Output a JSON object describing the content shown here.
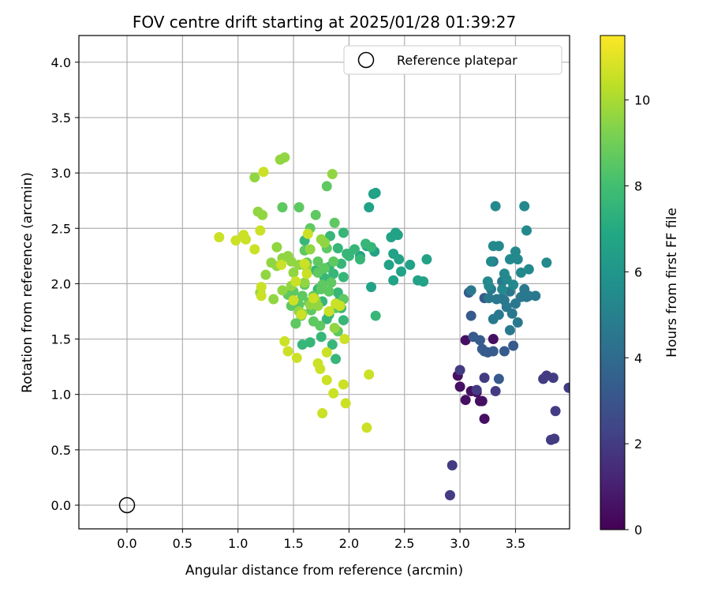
{
  "chart_data": {
    "type": "scatter",
    "title": "FOV centre drift starting at 2025/01/28 01:39:27",
    "xlabel": "Angular distance from reference (arcmin)",
    "ylabel": "Rotation from reference (arcmin)",
    "xlim": [
      -0.43,
      3.99
    ],
    "ylim": [
      -0.21,
      4.22
    ],
    "xticks": [
      "0.0",
      "0.5",
      "1.0",
      "1.5",
      "2.0",
      "2.5",
      "3.0",
      "3.5"
    ],
    "yticks": [
      "0.0",
      "0.5",
      "1.0",
      "1.5",
      "2.0",
      "2.5",
      "3.0",
      "3.5",
      "4.0"
    ],
    "grid": true,
    "legend": {
      "label": "Reference platepar",
      "placement": "top-right",
      "marker": "open-circle"
    },
    "reference_point": {
      "x": 0.0,
      "y": 0.0
    },
    "colorbar": {
      "label": "Hours from first FF file",
      "colormap": "viridis",
      "range": [
        0,
        11.5
      ],
      "ticks": [
        "0",
        "2",
        "4",
        "6",
        "8",
        "10"
      ]
    },
    "series": [
      {
        "color_value": 0.5,
        "points": [
          [
            3.05,
            1.49
          ],
          [
            3.2,
            0.94
          ],
          [
            3.22,
            0.78
          ],
          [
            3.3,
            1.5
          ],
          [
            3.0,
            1.07
          ],
          [
            3.05,
            0.95
          ],
          [
            3.1,
            1.03
          ],
          [
            3.15,
            1.02
          ],
          [
            3.18,
            0.94
          ],
          [
            2.98,
            1.17
          ]
        ]
      },
      {
        "color_value": 2.0,
        "points": [
          [
            2.93,
            0.36
          ],
          [
            2.91,
            0.09
          ],
          [
            3.0,
            1.22
          ],
          [
            3.15,
            1.04
          ],
          [
            3.22,
            1.15
          ],
          [
            3.32,
            1.03
          ],
          [
            3.85,
            0.6
          ],
          [
            3.86,
            0.85
          ],
          [
            3.82,
            0.59
          ],
          [
            3.78,
            1.17
          ],
          [
            3.75,
            1.14
          ],
          [
            3.84,
            1.15
          ],
          [
            3.98,
            1.06
          ]
        ]
      },
      {
        "color_value": 3.3,
        "points": [
          [
            3.08,
            1.92
          ],
          [
            3.1,
            1.71
          ],
          [
            3.12,
            1.52
          ],
          [
            3.18,
            1.49
          ],
          [
            3.2,
            1.41
          ],
          [
            3.22,
            1.39
          ],
          [
            3.25,
            1.38
          ],
          [
            3.3,
            1.39
          ],
          [
            3.35,
            1.14
          ],
          [
            3.4,
            1.39
          ],
          [
            3.48,
            1.44
          ],
          [
            3.22,
            1.87
          ]
        ]
      },
      {
        "color_value": 4.6,
        "points": [
          [
            3.28,
            1.95
          ],
          [
            3.26,
            1.87
          ],
          [
            3.3,
            1.68
          ],
          [
            3.35,
            1.72
          ],
          [
            3.38,
            1.87
          ],
          [
            3.4,
            1.85
          ],
          [
            3.42,
            1.79
          ],
          [
            3.45,
            1.93
          ],
          [
            3.47,
            1.73
          ],
          [
            3.5,
            1.82
          ],
          [
            3.52,
            1.65
          ],
          [
            3.55,
            1.88
          ],
          [
            3.58,
            1.95
          ],
          [
            3.6,
            1.88
          ],
          [
            3.62,
            1.89
          ],
          [
            3.68,
            1.89
          ],
          [
            3.33,
            1.86
          ],
          [
            3.45,
            1.58
          ],
          [
            3.3,
            2.2
          ],
          [
            3.38,
            2.02
          ],
          [
            3.1,
            1.94
          ]
        ]
      },
      {
        "color_value": 5.4,
        "points": [
          [
            3.25,
            2.02
          ],
          [
            3.28,
            2.2
          ],
          [
            3.3,
            2.34
          ],
          [
            3.35,
            2.34
          ],
          [
            3.4,
            2.09
          ],
          [
            3.42,
            2.04
          ],
          [
            3.45,
            2.22
          ],
          [
            3.48,
            1.99
          ],
          [
            3.5,
            2.29
          ],
          [
            3.52,
            2.22
          ],
          [
            3.55,
            2.1
          ],
          [
            3.58,
            2.7
          ],
          [
            3.6,
            2.48
          ],
          [
            3.62,
            2.13
          ],
          [
            3.32,
            2.7
          ],
          [
            3.78,
            2.19
          ],
          [
            3.38,
            1.95
          ],
          [
            3.26,
            1.98
          ]
        ]
      },
      {
        "color_value": 6.6,
        "points": [
          [
            2.18,
            2.69
          ],
          [
            2.2,
            1.97
          ],
          [
            2.23,
            2.29
          ],
          [
            2.36,
            2.17
          ],
          [
            2.38,
            2.42
          ],
          [
            2.42,
            2.46
          ],
          [
            2.44,
            2.44
          ],
          [
            2.4,
            2.27
          ],
          [
            2.45,
            2.22
          ],
          [
            2.47,
            2.11
          ],
          [
            2.4,
            2.03
          ],
          [
            2.55,
            2.17
          ],
          [
            2.62,
            2.03
          ],
          [
            2.67,
            2.02
          ],
          [
            2.7,
            2.22
          ],
          [
            2.22,
            2.81
          ],
          [
            2.24,
            2.82
          ],
          [
            2.1,
            2.25
          ],
          [
            2.16,
            2.34
          ]
        ]
      },
      {
        "color_value": 7.6,
        "points": [
          [
            1.95,
            1.67
          ],
          [
            1.92,
            1.86
          ],
          [
            1.9,
            1.92
          ],
          [
            1.95,
            2.06
          ],
          [
            1.93,
            2.18
          ],
          [
            1.98,
            2.27
          ],
          [
            2.0,
            2.25
          ],
          [
            2.05,
            2.31
          ],
          [
            2.1,
            2.22
          ],
          [
            2.15,
            2.36
          ],
          [
            2.2,
            2.33
          ],
          [
            2.24,
            1.71
          ],
          [
            1.88,
            1.32
          ],
          [
            1.8,
            1.68
          ],
          [
            1.75,
            1.52
          ],
          [
            1.85,
            1.45
          ],
          [
            1.82,
            2.15
          ],
          [
            1.83,
            2.43
          ],
          [
            1.95,
            2.46
          ],
          [
            1.78,
            2.05
          ],
          [
            1.9,
            2.32
          ],
          [
            1.72,
            1.95
          ],
          [
            1.65,
            1.47
          ],
          [
            1.6,
            2.39
          ],
          [
            1.7,
            2.12
          ],
          [
            1.86,
            2.09
          ],
          [
            1.76,
            1.84
          ],
          [
            1.82,
            1.72
          ],
          [
            1.93,
            1.78
          ],
          [
            1.58,
            1.45
          ]
        ]
      },
      {
        "color_value": 8.6,
        "points": [
          [
            1.48,
            1.8
          ],
          [
            1.5,
            1.93
          ],
          [
            1.52,
            1.64
          ],
          [
            1.55,
            1.81
          ],
          [
            1.57,
            1.71
          ],
          [
            1.58,
            1.89
          ],
          [
            1.6,
            1.99
          ],
          [
            1.62,
            2.19
          ],
          [
            1.64,
            1.83
          ],
          [
            1.66,
            1.76
          ],
          [
            1.68,
            1.89
          ],
          [
            1.7,
            2.62
          ],
          [
            1.72,
            2.1
          ],
          [
            1.74,
            1.62
          ],
          [
            1.76,
            1.99
          ],
          [
            1.78,
            2.14
          ],
          [
            1.8,
            2.32
          ],
          [
            1.82,
            1.93
          ],
          [
            1.84,
            2.01
          ],
          [
            1.86,
            2.2
          ],
          [
            1.88,
            1.78
          ],
          [
            1.9,
            1.57
          ],
          [
            1.75,
            1.95
          ],
          [
            1.65,
            2.5
          ],
          [
            1.4,
            2.69
          ],
          [
            1.55,
            2.69
          ],
          [
            1.8,
            2.88
          ],
          [
            1.87,
            2.55
          ],
          [
            1.72,
            2.2
          ],
          [
            1.6,
            2.3
          ],
          [
            1.95,
            1.86
          ],
          [
            1.45,
            1.9
          ],
          [
            1.52,
            1.64
          ],
          [
            1.68,
            1.66
          ]
        ]
      },
      {
        "color_value": 9.6,
        "points": [
          [
            1.18,
            2.65
          ],
          [
            1.22,
            2.62
          ],
          [
            1.15,
            2.96
          ],
          [
            1.38,
            3.12
          ],
          [
            1.42,
            3.14
          ],
          [
            1.3,
            2.19
          ],
          [
            1.35,
            2.33
          ],
          [
            1.4,
            2.23
          ],
          [
            1.45,
            2.25
          ],
          [
            1.48,
            2.2
          ],
          [
            1.5,
            2.1
          ],
          [
            1.55,
            2.17
          ],
          [
            1.6,
            2.01
          ],
          [
            1.62,
            2.15
          ],
          [
            1.65,
            2.31
          ],
          [
            1.7,
            1.85
          ],
          [
            1.72,
            1.8
          ],
          [
            1.78,
            2.37
          ],
          [
            1.85,
            2.99
          ],
          [
            1.2,
            1.92
          ],
          [
            1.32,
            1.86
          ],
          [
            1.25,
            2.08
          ],
          [
            1.35,
            2.16
          ],
          [
            1.55,
            1.75
          ],
          [
            1.58,
            1.73
          ],
          [
            1.4,
            1.94
          ],
          [
            1.87,
            1.6
          ],
          [
            1.75,
            2.4
          ],
          [
            1.65,
            1.81
          ],
          [
            1.48,
            1.98
          ]
        ]
      },
      {
        "color_value": 10.6,
        "points": [
          [
            0.83,
            2.42
          ],
          [
            0.98,
            2.39
          ],
          [
            1.05,
            2.44
          ],
          [
            1.07,
            2.4
          ],
          [
            1.2,
            2.48
          ],
          [
            1.15,
            2.31
          ],
          [
            1.21,
            1.97
          ],
          [
            1.21,
            1.89
          ],
          [
            1.23,
            3.01
          ],
          [
            1.39,
            2.17
          ],
          [
            1.42,
            1.48
          ],
          [
            1.45,
            1.39
          ],
          [
            1.5,
            1.85
          ],
          [
            1.52,
            2.02
          ],
          [
            1.53,
            1.33
          ],
          [
            1.57,
            1.72
          ],
          [
            1.6,
            2.18
          ],
          [
            1.62,
            2.09
          ],
          [
            1.63,
            2.45
          ],
          [
            1.72,
            1.28
          ],
          [
            1.74,
            1.23
          ],
          [
            1.76,
            0.83
          ],
          [
            1.8,
            1.13
          ],
          [
            1.8,
            1.38
          ],
          [
            1.82,
            1.75
          ],
          [
            1.86,
            1.01
          ],
          [
            1.88,
            1.82
          ],
          [
            1.95,
            1.09
          ],
          [
            1.96,
            1.5
          ],
          [
            1.97,
            0.92
          ],
          [
            2.16,
            0.7
          ],
          [
            2.18,
            1.18
          ],
          [
            1.92,
            1.8
          ],
          [
            1.68,
            1.87
          ]
        ]
      }
    ]
  }
}
